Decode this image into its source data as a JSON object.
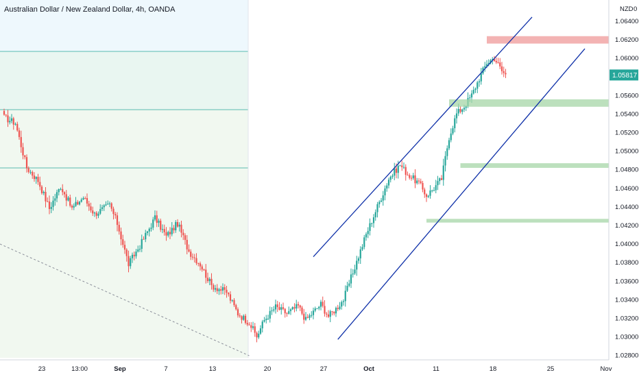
{
  "symbol_title": "Australian Dollar / New Zealand Dollar, 4h, OANDA",
  "currency_label": "NZD",
  "currency_suffix": "0",
  "colors": {
    "up": "#26a69a",
    "down": "#ef5350",
    "channel": "#0d2fa8",
    "support_zone": "#a5d6a7",
    "resistance_zone": "#ef9a9a",
    "price_tag": "#26a69a",
    "zone_upper": "#eef8fd",
    "zone_middle": "#e9f6f1",
    "zone_lower": "#f1f8f0",
    "zone_line": "#26a69a",
    "dashed_line": "#8a8e99"
  },
  "chart_data": {
    "type": "candlestick",
    "title": "Australian Dollar / New Zealand Dollar, 4h, OANDA",
    "price_axis": {
      "ticks": [
        "1.06400",
        "1.06200",
        "1.06000",
        "1.05800",
        "1.05600",
        "1.05400",
        "1.05200",
        "1.05000",
        "1.04800",
        "1.04600",
        "1.04400",
        "1.04200",
        "1.04000",
        "1.03800",
        "1.03600",
        "1.03400",
        "1.03200",
        "1.03000",
        "1.02800"
      ],
      "range": [
        1.0275,
        1.0658
      ]
    },
    "time_axis": {
      "ticks": [
        "23",
        "13:00",
        "Sep",
        "7",
        "13",
        "20",
        "27",
        "Oct",
        "11",
        "18",
        "25",
        "Nov"
      ],
      "bold": [
        "Sep",
        "Oct"
      ]
    },
    "last_price": "1.05817",
    "key_points": [
      {
        "t": 0,
        "p": 1.0536
      },
      {
        "t": 6,
        "p": 1.053
      },
      {
        "t": 12,
        "p": 1.0482
      },
      {
        "t": 18,
        "p": 1.0468
      },
      {
        "t": 24,
        "p": 1.0438
      },
      {
        "t": 30,
        "p": 1.0462
      },
      {
        "t": 36,
        "p": 1.0438
      },
      {
        "t": 42,
        "p": 1.045
      },
      {
        "t": 48,
        "p": 1.0432
      },
      {
        "t": 56,
        "p": 1.0442
      },
      {
        "t": 60,
        "p": 1.0422
      },
      {
        "t": 66,
        "p": 1.0378
      },
      {
        "t": 72,
        "p": 1.0398
      },
      {
        "t": 80,
        "p": 1.0428
      },
      {
        "t": 86,
        "p": 1.0408
      },
      {
        "t": 92,
        "p": 1.0422
      },
      {
        "t": 98,
        "p": 1.0392
      },
      {
        "t": 104,
        "p": 1.0378
      },
      {
        "t": 110,
        "p": 1.0355
      },
      {
        "t": 118,
        "p": 1.0348
      },
      {
        "t": 124,
        "p": 1.0325
      },
      {
        "t": 130,
        "p": 1.0315
      },
      {
        "t": 134,
        "p": 1.03
      },
      {
        "t": 138,
        "p": 1.0318
      },
      {
        "t": 144,
        "p": 1.0332
      },
      {
        "t": 150,
        "p": 1.0325
      },
      {
        "t": 156,
        "p": 1.0333
      },
      {
        "t": 160,
        "p": 1.0318
      },
      {
        "t": 168,
        "p": 1.0335
      },
      {
        "t": 172,
        "p": 1.0322
      },
      {
        "t": 176,
        "p": 1.033
      },
      {
        "t": 180,
        "p": 1.034
      },
      {
        "t": 186,
        "p": 1.0375
      },
      {
        "t": 192,
        "p": 1.041
      },
      {
        "t": 198,
        "p": 1.044
      },
      {
        "t": 204,
        "p": 1.047
      },
      {
        "t": 210,
        "p": 1.0485
      },
      {
        "t": 214,
        "p": 1.0475
      },
      {
        "t": 220,
        "p": 1.0465
      },
      {
        "t": 224,
        "p": 1.0452
      },
      {
        "t": 228,
        "p": 1.046
      },
      {
        "t": 232,
        "p": 1.047
      },
      {
        "t": 236,
        "p": 1.0515
      },
      {
        "t": 240,
        "p": 1.054
      },
      {
        "t": 244,
        "p": 1.0548
      },
      {
        "t": 248,
        "p": 1.056
      },
      {
        "t": 252,
        "p": 1.0578
      },
      {
        "t": 256,
        "p": 1.0595
      },
      {
        "t": 260,
        "p": 1.06
      },
      {
        "t": 264,
        "p": 1.0586
      },
      {
        "t": 266,
        "p": 1.0582
      }
    ],
    "channel_upper": [
      {
        "t": 164,
        "p": 1.0386
      },
      {
        "t": 280,
        "p": 1.0644
      }
    ],
    "channel_lower": [
      {
        "t": 177,
        "p": 1.0297
      },
      {
        "t": 308,
        "p": 1.061
      }
    ],
    "zones": [
      {
        "kind": "resistance",
        "t_start": 256,
        "p_low": 1.06155,
        "p_high": 1.06235
      },
      {
        "kind": "support",
        "t_start": 236,
        "t_end": 338,
        "p_low": 1.05475,
        "p_high": 1.05555
      },
      {
        "kind": "support",
        "t_start": 242,
        "p_low": 1.04817,
        "p_high": 1.04867
      },
      {
        "kind": "support",
        "t_start": 224,
        "p_low": 1.04228,
        "p_high": 1.04268
      }
    ]
  }
}
